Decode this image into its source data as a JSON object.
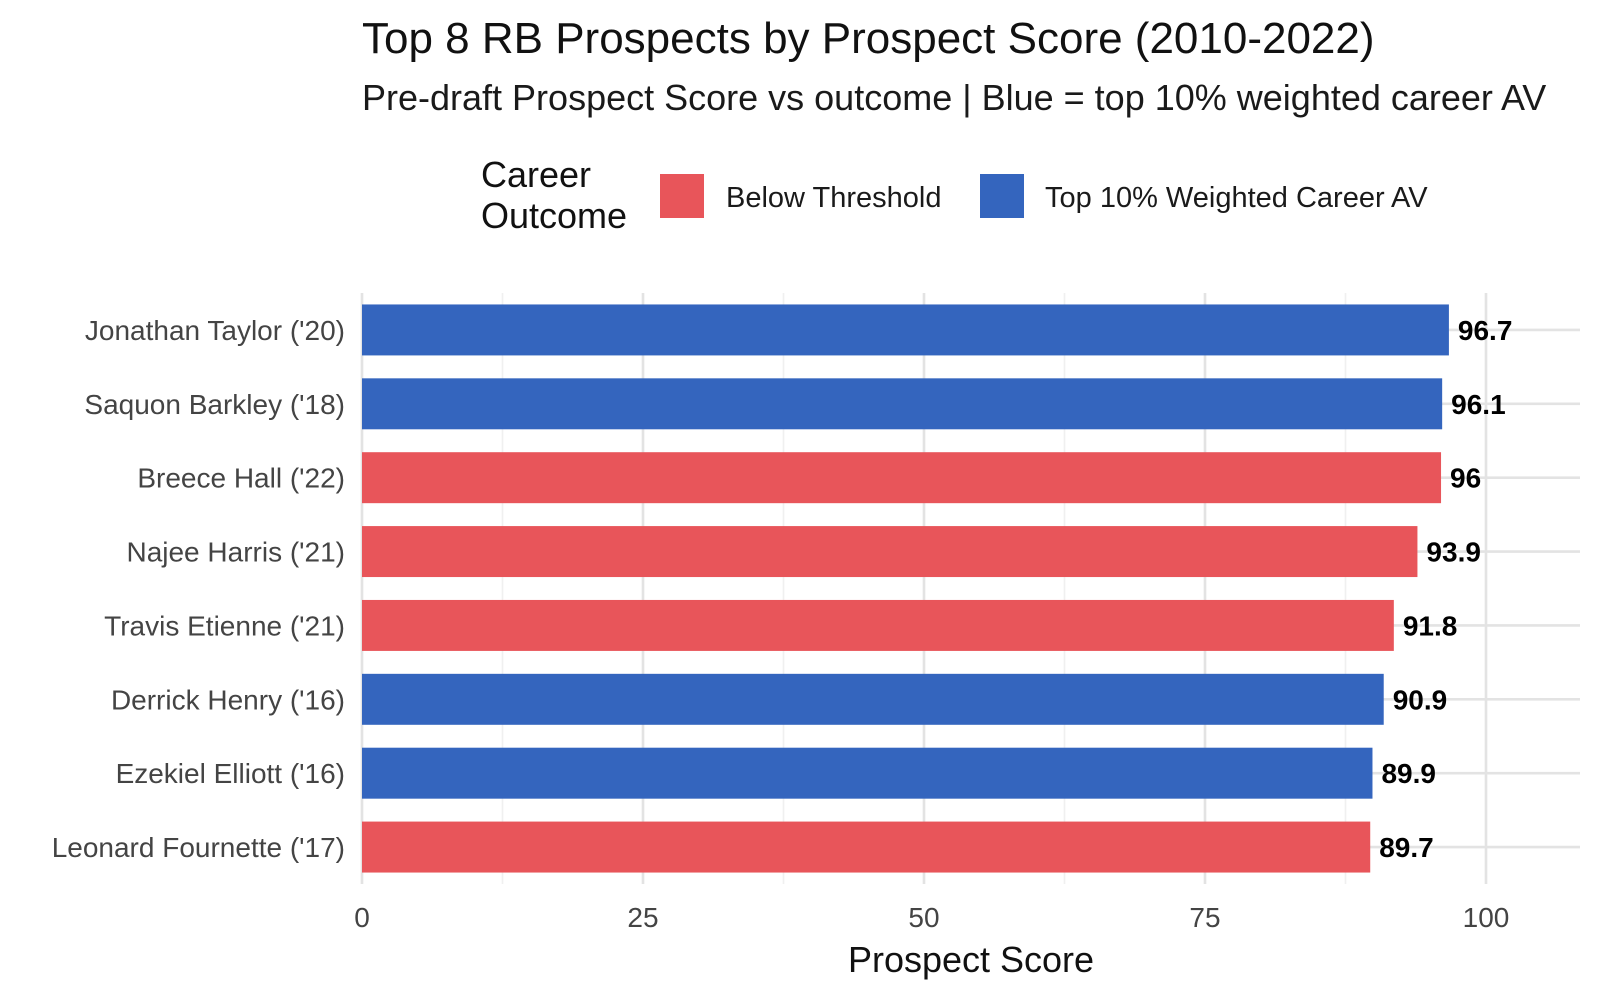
{
  "chart_data": {
    "type": "bar",
    "orientation": "horizontal",
    "title": "Top 8 RB Prospects by Prospect Score (2010-2022)",
    "subtitle": "Pre-draft Prospect Score vs outcome | Blue = top 10% weighted career AV",
    "xlabel": "Prospect Score",
    "ylabel": "",
    "xlim": [
      0,
      100
    ],
    "x_ticks": [
      "0",
      "25",
      "50",
      "75",
      "100"
    ],
    "grid": true,
    "legend": {
      "title": "Career\nOutcome",
      "placement": "top",
      "entries": [
        {
          "name": "Below Threshold",
          "color": "#e8555a"
        },
        {
          "name": "Top 10% Weighted Career AV",
          "color": "#3465be"
        }
      ]
    },
    "categories": [
      "Jonathan Taylor ('20)",
      "Saquon Barkley ('18)",
      "Breece Hall ('22)",
      "Najee Harris ('21)",
      "Travis Etienne ('21)",
      "Derrick Henry ('16)",
      "Ezekiel Elliott ('16)",
      "Leonard Fournette ('17)"
    ],
    "values": [
      96.7,
      96.1,
      96,
      93.9,
      91.8,
      90.9,
      89.9,
      89.7
    ],
    "value_labels": [
      "96.7",
      "96.1",
      "96",
      "93.9",
      "91.8",
      "90.9",
      "89.9",
      "89.7"
    ],
    "outcome": [
      "Top 10% Weighted Career AV",
      "Top 10% Weighted Career AV",
      "Below Threshold",
      "Below Threshold",
      "Below Threshold",
      "Top 10% Weighted Career AV",
      "Top 10% Weighted Career AV",
      "Below Threshold"
    ]
  }
}
